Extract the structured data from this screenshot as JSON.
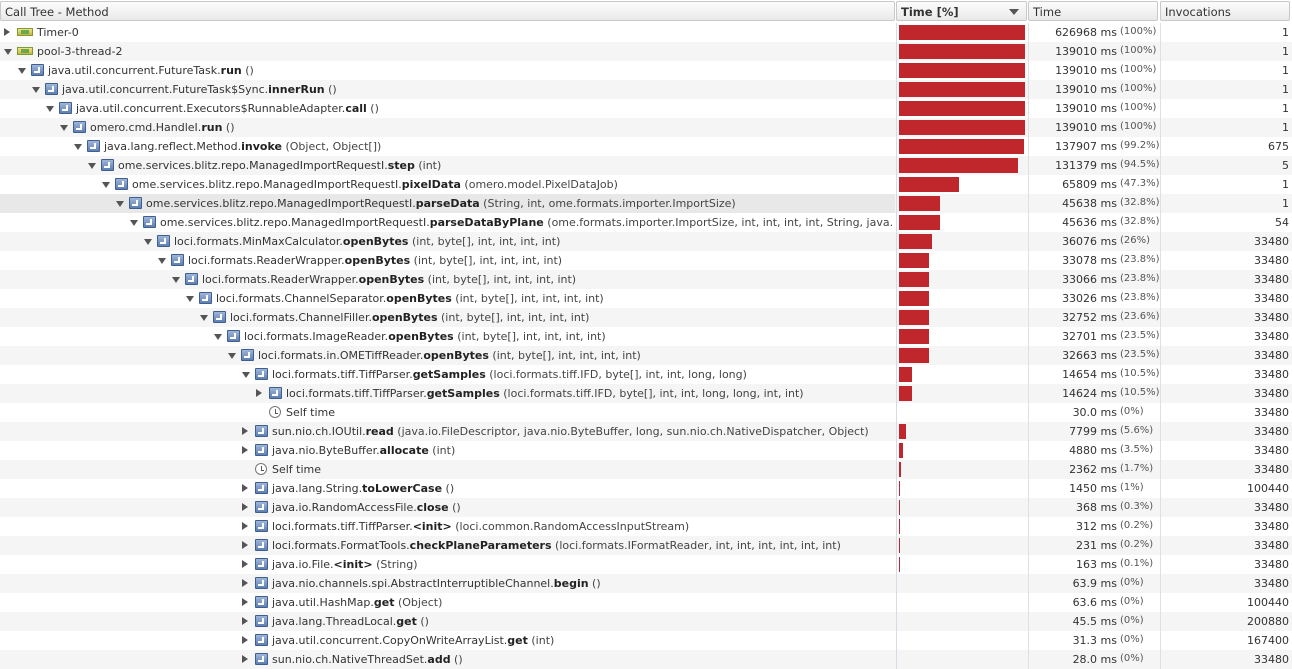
{
  "columns": {
    "call_tree": "Call Tree - Method",
    "time_pct": "Time [%]",
    "time": "Time",
    "invocations": "Invocations"
  },
  "rows": [
    {
      "depth": 0,
      "toggle": "collapsed",
      "icon": "thread-icon",
      "name": "Timer-0",
      "bold": "",
      "args": "",
      "pct": 100,
      "time": "626968 ms",
      "pct_label": "(100%)",
      "inv": "1"
    },
    {
      "depth": 0,
      "toggle": "expanded",
      "icon": "thread-icon",
      "name": "pool-3-thread-2",
      "bold": "",
      "args": "",
      "pct": 100,
      "time": "139010 ms",
      "pct_label": "(100%)",
      "inv": "1"
    },
    {
      "depth": 1,
      "toggle": "expanded",
      "icon": "method-icon",
      "name": "java.util.concurrent.FutureTask.",
      "bold": "run",
      "args": " ()",
      "pct": 100,
      "time": "139010 ms",
      "pct_label": "(100%)",
      "inv": "1"
    },
    {
      "depth": 2,
      "toggle": "expanded",
      "icon": "method-icon",
      "name": "java.util.concurrent.FutureTask$Sync.",
      "bold": "innerRun",
      "args": " ()",
      "pct": 100,
      "time": "139010 ms",
      "pct_label": "(100%)",
      "inv": "1"
    },
    {
      "depth": 3,
      "toggle": "expanded",
      "icon": "method-icon",
      "name": "java.util.concurrent.Executors$RunnableAdapter.",
      "bold": "call",
      "args": " ()",
      "pct": 100,
      "time": "139010 ms",
      "pct_label": "(100%)",
      "inv": "1"
    },
    {
      "depth": 4,
      "toggle": "expanded",
      "icon": "method-icon",
      "name": "omero.cmd.HandleI.",
      "bold": "run",
      "args": " ()",
      "pct": 100,
      "time": "139010 ms",
      "pct_label": "(100%)",
      "inv": "1"
    },
    {
      "depth": 5,
      "toggle": "expanded",
      "icon": "method-icon",
      "name": "java.lang.reflect.Method.",
      "bold": "invoke",
      "args": " (Object, Object[])",
      "pct": 99.2,
      "time": "137907 ms",
      "pct_label": "(99.2%)",
      "inv": "675"
    },
    {
      "depth": 6,
      "toggle": "expanded",
      "icon": "method-icon",
      "name": "ome.services.blitz.repo.ManagedImportRequestI.",
      "bold": "step",
      "args": " (int)",
      "pct": 94.5,
      "time": "131379 ms",
      "pct_label": "(94.5%)",
      "inv": "5"
    },
    {
      "depth": 7,
      "toggle": "expanded",
      "icon": "method-icon",
      "name": "ome.services.blitz.repo.ManagedImportRequestI.",
      "bold": "pixelData",
      "args": " (omero.model.PixelDataJob)",
      "pct": 47.3,
      "time": "65809 ms",
      "pct_label": "(47.3%)",
      "inv": "1"
    },
    {
      "depth": 8,
      "toggle": "expanded",
      "icon": "method-icon",
      "name": "ome.services.blitz.repo.ManagedImportRequestI.",
      "bold": "parseData",
      "args": " (String, int, ome.formats.importer.ImportSize)",
      "pct": 32.8,
      "time": "45638 ms",
      "pct_label": "(32.8%)",
      "inv": "1",
      "selected": true
    },
    {
      "depth": 9,
      "toggle": "expanded",
      "icon": "method-icon",
      "name": "ome.services.blitz.repo.ManagedImportRequestI.",
      "bold": "parseDataByPlane",
      "args": " (ome.formats.importer.ImportSize, int, int, int, int, String, java.",
      "pct": 32.8,
      "time": "45636 ms",
      "pct_label": "(32.8%)",
      "inv": "54"
    },
    {
      "depth": 10,
      "toggle": "expanded",
      "icon": "method-icon",
      "name": "loci.formats.MinMaxCalculator.",
      "bold": "openBytes",
      "args": " (int, byte[], int, int, int, int)",
      "pct": 26,
      "time": "36076 ms",
      "pct_label": "(26%)",
      "inv": "33480"
    },
    {
      "depth": 11,
      "toggle": "expanded",
      "icon": "method-icon",
      "name": "loci.formats.ReaderWrapper.",
      "bold": "openBytes",
      "args": " (int, byte[], int, int, int, int)",
      "pct": 23.8,
      "time": "33078 ms",
      "pct_label": "(23.8%)",
      "inv": "33480"
    },
    {
      "depth": 12,
      "toggle": "expanded",
      "icon": "method-icon",
      "name": "loci.formats.ReaderWrapper.",
      "bold": "openBytes",
      "args": " (int, byte[], int, int, int, int)",
      "pct": 23.8,
      "time": "33066 ms",
      "pct_label": "(23.8%)",
      "inv": "33480"
    },
    {
      "depth": 13,
      "toggle": "expanded",
      "icon": "method-icon",
      "name": "loci.formats.ChannelSeparator.",
      "bold": "openBytes",
      "args": " (int, byte[], int, int, int, int)",
      "pct": 23.8,
      "time": "33026 ms",
      "pct_label": "(23.8%)",
      "inv": "33480"
    },
    {
      "depth": 14,
      "toggle": "expanded",
      "icon": "method-icon",
      "name": "loci.formats.ChannelFiller.",
      "bold": "openBytes",
      "args": " (int, byte[], int, int, int, int)",
      "pct": 23.6,
      "time": "32752 ms",
      "pct_label": "(23.6%)",
      "inv": "33480"
    },
    {
      "depth": 15,
      "toggle": "expanded",
      "icon": "method-icon",
      "name": "loci.formats.ImageReader.",
      "bold": "openBytes",
      "args": " (int, byte[], int, int, int, int)",
      "pct": 23.5,
      "time": "32701 ms",
      "pct_label": "(23.5%)",
      "inv": "33480"
    },
    {
      "depth": 16,
      "toggle": "expanded",
      "icon": "method-icon",
      "name": "loci.formats.in.OMETiffReader.",
      "bold": "openBytes",
      "args": " (int, byte[], int, int, int, int)",
      "pct": 23.5,
      "time": "32663 ms",
      "pct_label": "(23.5%)",
      "inv": "33480"
    },
    {
      "depth": 17,
      "toggle": "expanded",
      "icon": "method-icon",
      "name": "loci.formats.tiff.TiffParser.",
      "bold": "getSamples",
      "args": " (loci.formats.tiff.IFD, byte[], int, int, long, long)",
      "pct": 10.5,
      "time": "14654 ms",
      "pct_label": "(10.5%)",
      "inv": "33480"
    },
    {
      "depth": 18,
      "toggle": "collapsed",
      "icon": "method-icon",
      "name": "loci.formats.tiff.TiffParser.",
      "bold": "getSamples",
      "args": " (loci.formats.tiff.IFD, byte[], int, int, long, long, int, int)",
      "pct": 10.5,
      "time": "14624 ms",
      "pct_label": "(10.5%)",
      "inv": "33480"
    },
    {
      "depth": 18,
      "toggle": "none",
      "icon": "clock-icon",
      "name": "Self time",
      "bold": "",
      "args": "",
      "pct": 0,
      "time": "30.0 ms",
      "pct_label": "(0%)",
      "inv": "33480"
    },
    {
      "depth": 17,
      "toggle": "collapsed",
      "icon": "method-icon",
      "name": "sun.nio.ch.IOUtil.",
      "bold": "read",
      "args": " (java.io.FileDescriptor, java.nio.ByteBuffer, long, sun.nio.ch.NativeDispatcher, Object)",
      "pct": 5.6,
      "time": "7799 ms",
      "pct_label": "(5.6%)",
      "inv": "33480"
    },
    {
      "depth": 17,
      "toggle": "collapsed",
      "icon": "method-icon",
      "name": "java.nio.ByteBuffer.",
      "bold": "allocate",
      "args": " (int)",
      "pct": 3.5,
      "time": "4880 ms",
      "pct_label": "(3.5%)",
      "inv": "33480"
    },
    {
      "depth": 17,
      "toggle": "none",
      "icon": "clock-icon",
      "name": "Self time",
      "bold": "",
      "args": "",
      "pct": 1.7,
      "time": "2362 ms",
      "pct_label": "(1.7%)",
      "inv": "33480"
    },
    {
      "depth": 17,
      "toggle": "collapsed",
      "icon": "method-icon",
      "name": "java.lang.String.",
      "bold": "toLowerCase",
      "args": " ()",
      "pct": 1,
      "time": "1450 ms",
      "pct_label": "(1%)",
      "inv": "100440"
    },
    {
      "depth": 17,
      "toggle": "collapsed",
      "icon": "method-icon",
      "name": "java.io.RandomAccessFile.",
      "bold": "close",
      "args": " ()",
      "pct": 0.3,
      "time": "368 ms",
      "pct_label": "(0.3%)",
      "inv": "33480"
    },
    {
      "depth": 17,
      "toggle": "collapsed",
      "icon": "method-icon",
      "name": "loci.formats.tiff.TiffParser.",
      "bold": "<init>",
      "args": " (loci.common.RandomAccessInputStream)",
      "pct": 0.2,
      "time": "312 ms",
      "pct_label": "(0.2%)",
      "inv": "33480"
    },
    {
      "depth": 17,
      "toggle": "collapsed",
      "icon": "method-icon",
      "name": "loci.formats.FormatTools.",
      "bold": "checkPlaneParameters",
      "args": " (loci.formats.IFormatReader, int, int, int, int, int, int)",
      "pct": 0.2,
      "time": "231 ms",
      "pct_label": "(0.2%)",
      "inv": "33480"
    },
    {
      "depth": 17,
      "toggle": "collapsed",
      "icon": "method-icon",
      "name": "java.io.File.",
      "bold": "<init>",
      "args": " (String)",
      "pct": 0.1,
      "time": "163 ms",
      "pct_label": "(0.1%)",
      "inv": "33480"
    },
    {
      "depth": 17,
      "toggle": "collapsed",
      "icon": "method-icon",
      "name": "java.nio.channels.spi.AbstractInterruptibleChannel.",
      "bold": "begin",
      "args": " ()",
      "pct": 0,
      "time": "63.9 ms",
      "pct_label": "(0%)",
      "inv": "33480"
    },
    {
      "depth": 17,
      "toggle": "collapsed",
      "icon": "method-icon",
      "name": "java.util.HashMap.",
      "bold": "get",
      "args": " (Object)",
      "pct": 0,
      "time": "63.6 ms",
      "pct_label": "(0%)",
      "inv": "100440"
    },
    {
      "depth": 17,
      "toggle": "collapsed",
      "icon": "method-icon",
      "name": "java.lang.ThreadLocal.",
      "bold": "get",
      "args": " ()",
      "pct": 0,
      "time": "45.5 ms",
      "pct_label": "(0%)",
      "inv": "200880"
    },
    {
      "depth": 17,
      "toggle": "collapsed",
      "icon": "method-icon",
      "name": "java.util.concurrent.CopyOnWriteArrayList.",
      "bold": "get",
      "args": " (int)",
      "pct": 0,
      "time": "31.3 ms",
      "pct_label": "(0%)",
      "inv": "167400"
    },
    {
      "depth": 17,
      "toggle": "collapsed",
      "icon": "method-icon",
      "name": "sun.nio.ch.NativeThreadSet.",
      "bold": "add",
      "args": " ()",
      "pct": 0,
      "time": "28.0 ms",
      "pct_label": "(0%)",
      "inv": "33480"
    }
  ]
}
